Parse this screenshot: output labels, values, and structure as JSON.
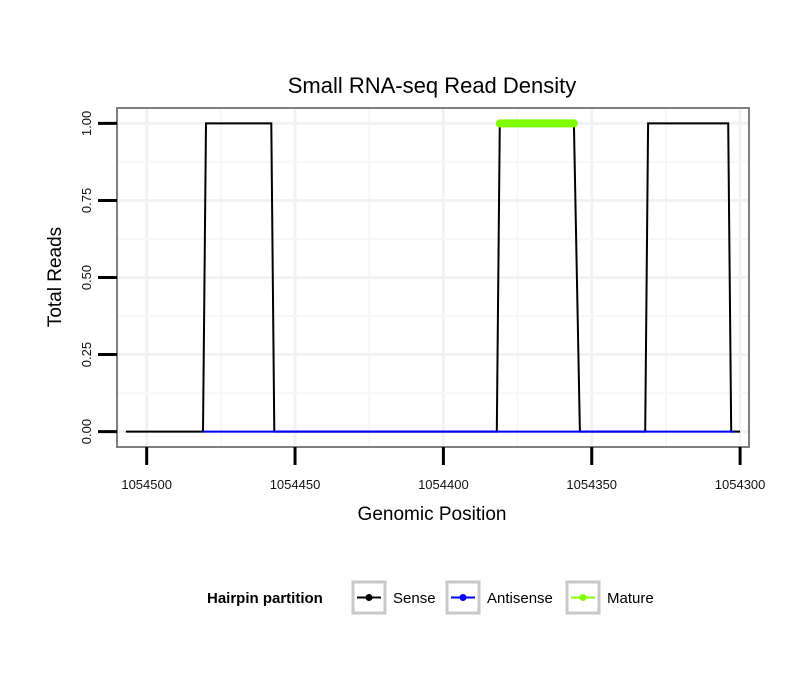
{
  "chart_data": {
    "type": "line",
    "title": "Small RNA-seq Read Density",
    "xlabel": "Genomic Position",
    "ylabel": "Total Reads",
    "x_reversed": true,
    "xlim": [
      1054510,
      1054297
    ],
    "ylim": [
      -0.05,
      1.05
    ],
    "x_ticks": [
      1054500,
      1054450,
      1054400,
      1054350,
      1054300
    ],
    "x_tick_labels": [
      "1054500",
      "1054450",
      "1054400",
      "1054350",
      "1054300"
    ],
    "y_ticks": [
      0,
      0.25,
      0.5,
      0.75,
      1.0
    ],
    "y_tick_labels": [
      "0.00",
      "0.25",
      "0.50",
      "0.75",
      "1.00"
    ],
    "grid": true,
    "legend": {
      "title": "Hairpin partition",
      "position": "bottom",
      "entries": [
        {
          "name": "Sense",
          "color": "#000000"
        },
        {
          "name": "Antisense",
          "color": "#0000ff"
        },
        {
          "name": "Mature",
          "color": "#7fff00"
        }
      ]
    },
    "series": [
      {
        "name": "Sense",
        "color": "#000000",
        "x": [
          1054507,
          1054481,
          1054480,
          1054458,
          1054457,
          1054382,
          1054381,
          1054356,
          1054354,
          1054332,
          1054331,
          1054304,
          1054303,
          1054300
        ],
        "y": [
          0,
          0,
          1,
          1,
          0,
          0,
          1,
          1,
          0,
          0,
          1,
          1,
          0,
          0
        ]
      },
      {
        "name": "Antisense",
        "color": "#0000ff",
        "x": [
          1054481,
          1054457,
          1054382,
          1054354,
          1054332,
          1054302
        ],
        "y": [
          0,
          0,
          0,
          0,
          0,
          0
        ]
      },
      {
        "name": "Mature",
        "color": "#7fff00",
        "x": [
          1054381,
          1054356
        ],
        "y": [
          1,
          1
        ]
      }
    ]
  }
}
